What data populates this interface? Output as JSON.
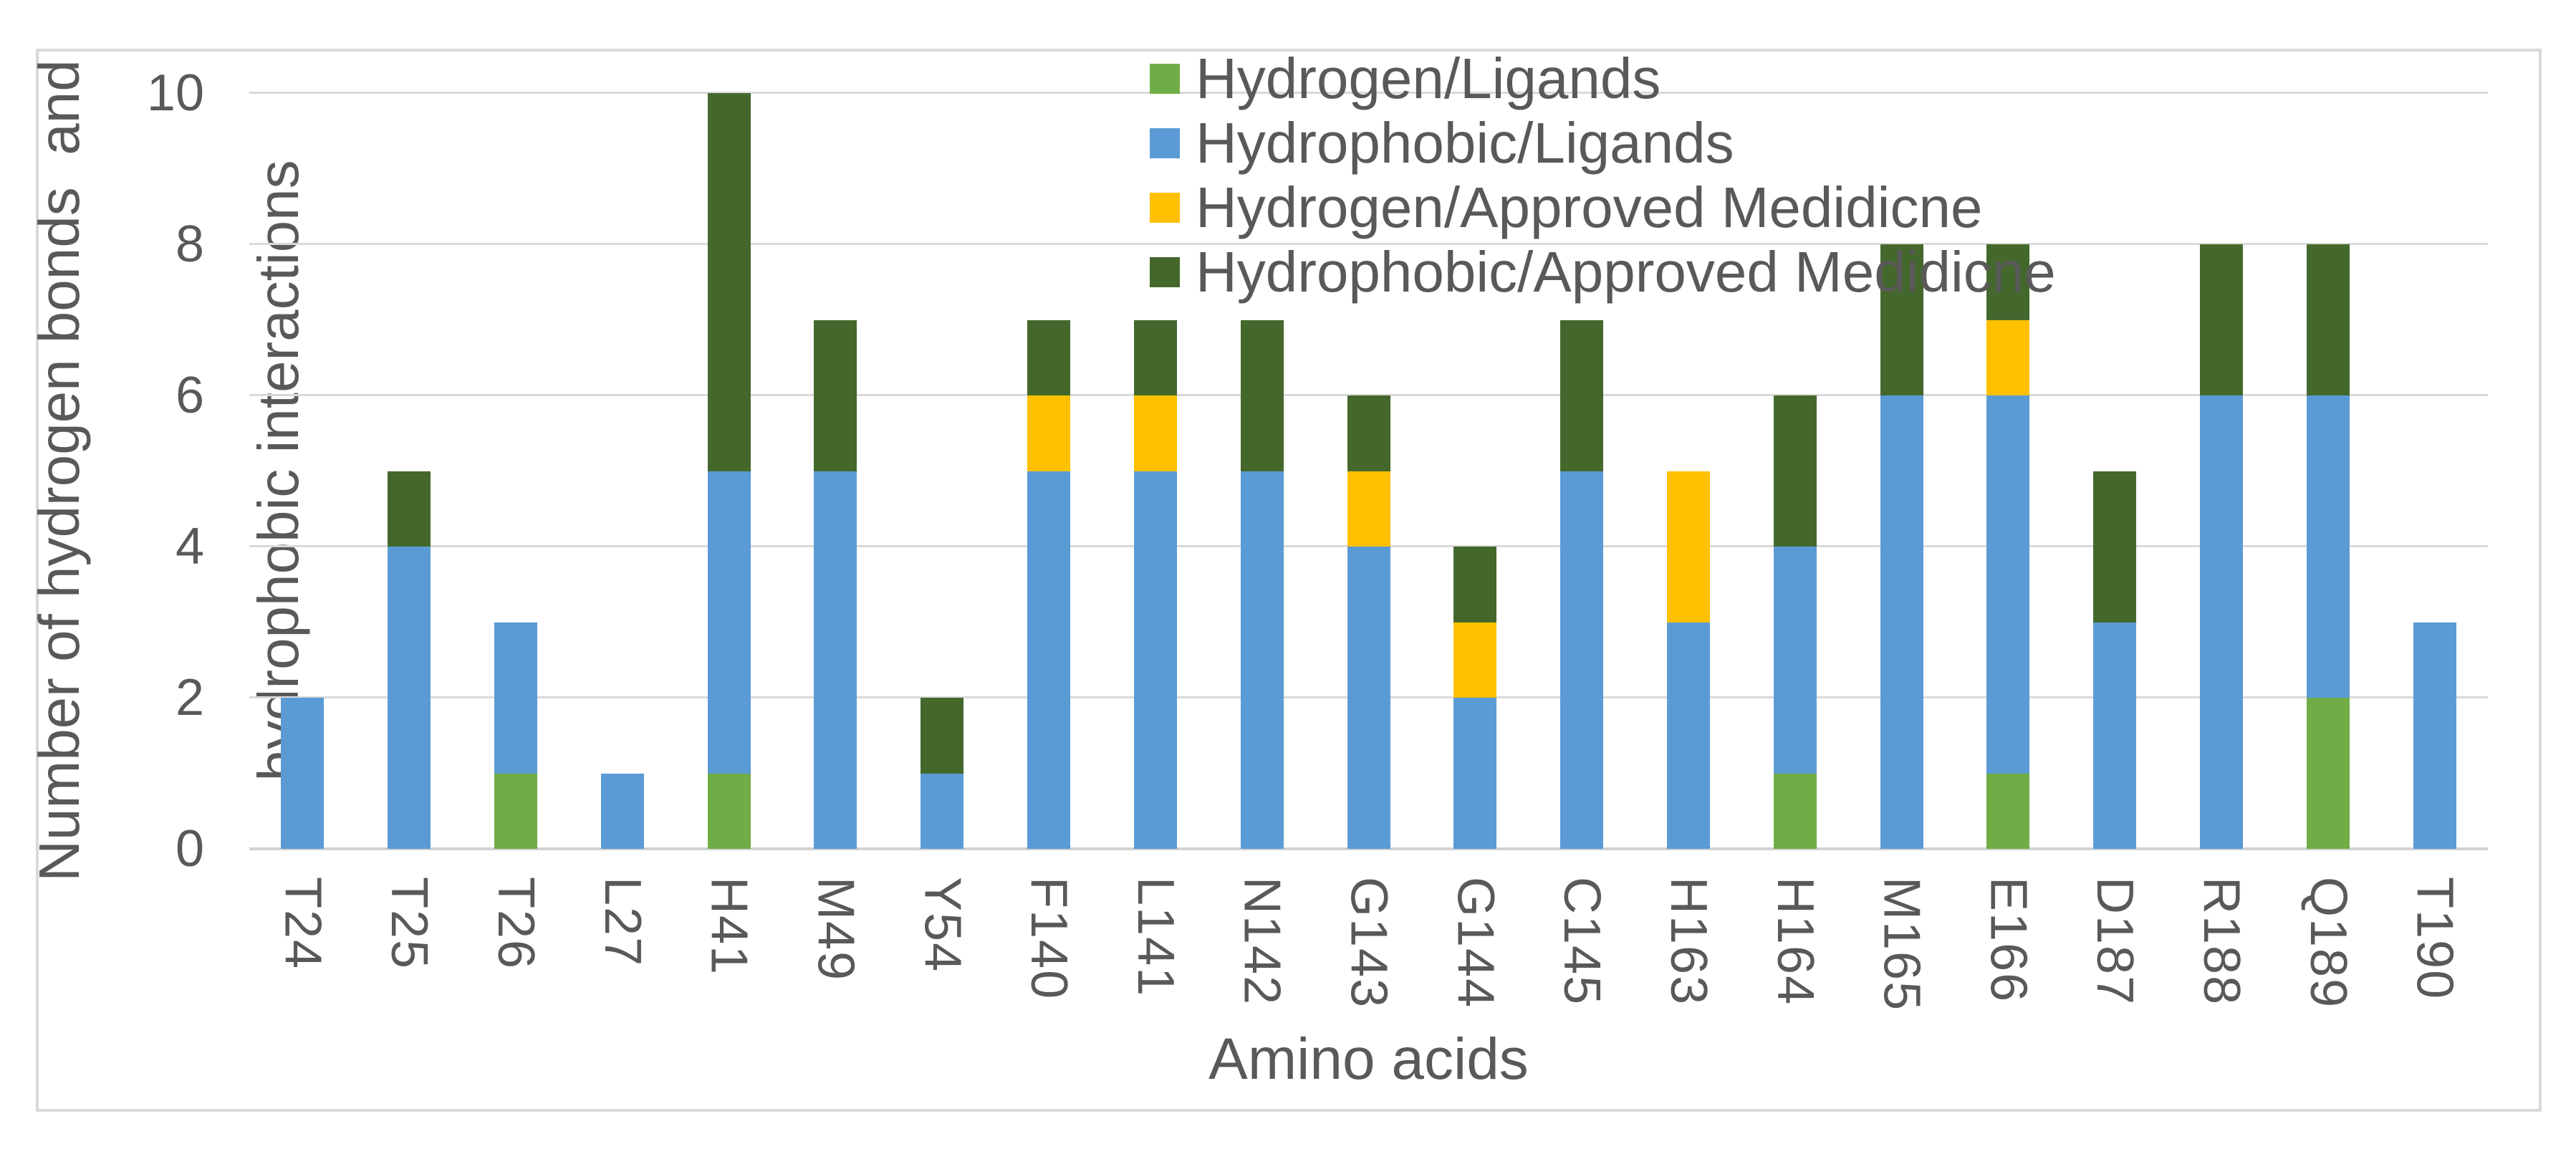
{
  "chart_data": {
    "type": "bar",
    "stacked": true,
    "xlabel": "Amino acids",
    "ylabel_line1": "Number of hydrogen bonds  and",
    "ylabel_line2": "hydrophobic interactions",
    "ylim": [
      0,
      10
    ],
    "yticks": [
      0,
      2,
      4,
      6,
      8,
      10
    ],
    "grid": true,
    "legend_position": "top-center-vertical",
    "categories": [
      "T24",
      "T25",
      "T26",
      "L27",
      "H41",
      "M49",
      "Y54",
      "F140",
      "L141",
      "N142",
      "G143",
      "G144",
      "C145",
      "H163",
      "H164",
      "M165",
      "E166",
      "D187",
      "R188",
      "Q189",
      "T190"
    ],
    "series": [
      {
        "name": "Hydrogen/Ligands",
        "color": "#70AD47",
        "values": [
          0,
          0,
          1,
          0,
          1,
          0,
          0,
          0,
          0,
          0,
          0,
          0,
          0,
          0,
          1,
          0,
          1,
          0,
          0,
          2,
          0
        ]
      },
      {
        "name": "Hydrophobic/Ligands",
        "color": "#5B9BD5",
        "values": [
          2,
          4,
          2,
          1,
          4,
          5,
          1,
          5,
          5,
          5,
          4,
          2,
          5,
          3,
          3,
          6,
          5,
          3,
          6,
          4,
          3
        ]
      },
      {
        "name": "Hydrogen/Approved Medidicne",
        "color": "#FFC000",
        "values": [
          0,
          0,
          0,
          0,
          0,
          0,
          0,
          1,
          1,
          0,
          1,
          1,
          0,
          2,
          0,
          0,
          1,
          0,
          0,
          0,
          0
        ]
      },
      {
        "name": "Hydrophobic/Approved Medidicne",
        "color": "#44682C",
        "values": [
          0,
          1,
          0,
          0,
          5,
          2,
          1,
          1,
          1,
          2,
          1,
          1,
          2,
          0,
          2,
          2,
          1,
          2,
          2,
          2,
          0
        ]
      }
    ]
  },
  "colors": {
    "text": "#595959",
    "gridline": "#D9D9D9",
    "border": "#D9D9D9",
    "background": "#FFFFFF"
  }
}
